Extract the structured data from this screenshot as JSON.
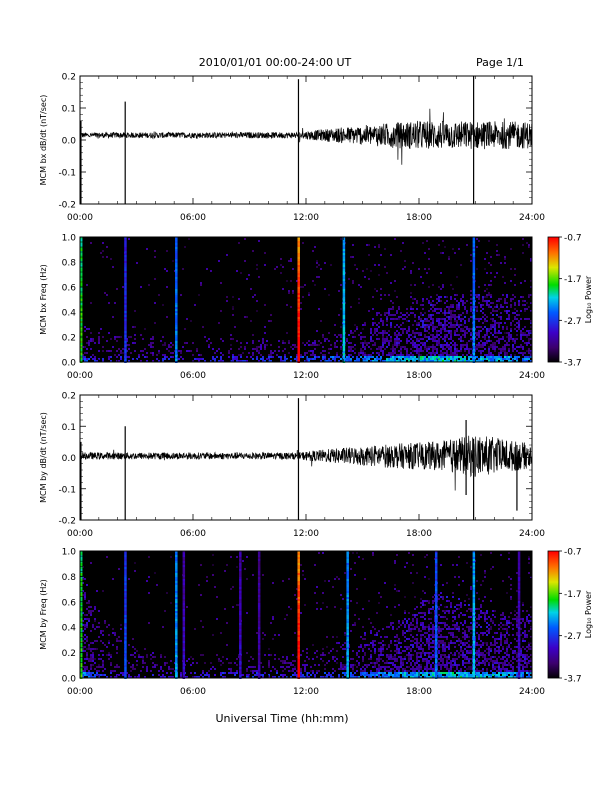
{
  "header": {
    "title": "2010/01/01   00:00-24:00 UT",
    "page": "Page 1/1"
  },
  "footer": {
    "xlabel": "Universal Time (hh:mm)"
  },
  "colors": {
    "line": "#000000",
    "spectrogram_bg": "#000000"
  },
  "chart_data": [
    {
      "type": "line",
      "ylabel": "MCM bx dB/dt (nT/sec)",
      "xlim": [
        0,
        24
      ],
      "ylim": [
        -0.2,
        0.2
      ],
      "xticks": [
        "00:00",
        "06:00",
        "12:00",
        "18:00",
        "24:00"
      ],
      "yticks": [
        "-0.2",
        "-0.1",
        "0.0",
        "0.1",
        "0.2"
      ],
      "baseline": 0.015,
      "noise": [
        [
          0,
          0.006
        ],
        [
          11.5,
          0.007
        ],
        [
          14,
          0.018
        ],
        [
          16.5,
          0.028
        ],
        [
          18,
          0.033
        ],
        [
          24,
          0.03
        ]
      ],
      "spikes": [
        [
          0.05,
          0.06,
          -0.2
        ],
        [
          2.4,
          0.12,
          -0.2
        ],
        [
          11.6,
          0.19,
          -0.2
        ],
        [
          20.9,
          0.2,
          -0.2
        ]
      ]
    },
    {
      "type": "heatmap",
      "ylabel": "MCM bx Freq (Hz)",
      "colorbar_label": "Log₁₀ Power",
      "xlim": [
        0,
        24
      ],
      "ylim": [
        0,
        1.0
      ],
      "xticks": [
        "00:00",
        "06:00",
        "12:00",
        "18:00",
        "24:00"
      ],
      "yticks": [
        "0.0",
        "0.2",
        "0.4",
        "0.6",
        "0.8",
        "1.0"
      ],
      "clim": [
        -3.7,
        -0.7
      ],
      "cticks": [
        "-0.7",
        "-1.7",
        "-2.7",
        "-3.7"
      ],
      "activity": [
        [
          0,
          0.5,
          0.3
        ],
        [
          1,
          0.3,
          0.25
        ],
        [
          6,
          0.3,
          0.2
        ],
        [
          11.8,
          0.45,
          0.18
        ],
        [
          14,
          0.55,
          0.25
        ],
        [
          16.5,
          0.75,
          0.45
        ],
        [
          19,
          0.9,
          0.55
        ],
        [
          21.5,
          0.75,
          0.55
        ],
        [
          24,
          0.65,
          0.55
        ]
      ],
      "stripes": [
        [
          0.05,
          -1.8
        ],
        [
          2.4,
          -2.7
        ],
        [
          5.1,
          -2.4
        ],
        [
          11.6,
          -1.0
        ],
        [
          14.0,
          -2.2
        ],
        [
          20.9,
          -2.4
        ]
      ]
    },
    {
      "type": "line",
      "ylabel": "MCM by dB/dt (nT/sec)",
      "xlim": [
        0,
        24
      ],
      "ylim": [
        -0.2,
        0.2
      ],
      "xticks": [
        "00:00",
        "06:00",
        "12:00",
        "18:00",
        "24:00"
      ],
      "yticks": [
        "-0.2",
        "-0.1",
        "0.0",
        "0.1",
        "0.2"
      ],
      "baseline": 0.005,
      "noise": [
        [
          0,
          0.008
        ],
        [
          11.5,
          0.008
        ],
        [
          13,
          0.015
        ],
        [
          16.5,
          0.028
        ],
        [
          19,
          0.033
        ],
        [
          21,
          0.05
        ],
        [
          24,
          0.028
        ]
      ],
      "spikes": [
        [
          0.05,
          0.05,
          -0.2
        ],
        [
          2.4,
          0.1,
          -0.2
        ],
        [
          11.6,
          0.19,
          -0.2
        ],
        [
          20.5,
          0.12,
          -0.12
        ],
        [
          20.9,
          0.06,
          -0.2
        ],
        [
          23.2,
          0.04,
          -0.17
        ]
      ]
    },
    {
      "type": "heatmap",
      "ylabel": "MCM by Freq (Hz)",
      "colorbar_label": "Log₁₀ Power",
      "xlim": [
        0,
        24
      ],
      "ylim": [
        0,
        1.0
      ],
      "xticks": [
        "00:00",
        "06:00",
        "12:00",
        "18:00",
        "24:00"
      ],
      "yticks": [
        "0.0",
        "0.2",
        "0.4",
        "0.6",
        "0.8",
        "1.0"
      ],
      "clim": [
        -3.7,
        -0.7
      ],
      "cticks": [
        "-0.7",
        "-1.7",
        "-2.7",
        "-3.7"
      ],
      "activity": [
        [
          0,
          0.7,
          0.9
        ],
        [
          1,
          0.4,
          0.5
        ],
        [
          3,
          0.3,
          0.25
        ],
        [
          6,
          0.3,
          0.2
        ],
        [
          11.8,
          0.4,
          0.2
        ],
        [
          14,
          0.5,
          0.3
        ],
        [
          16.5,
          0.7,
          0.45
        ],
        [
          19,
          0.85,
          0.7
        ],
        [
          21.5,
          0.8,
          0.55
        ],
        [
          24,
          0.65,
          0.5
        ]
      ],
      "stripes": [
        [
          0.05,
          -1.8
        ],
        [
          2.4,
          -2.6
        ],
        [
          5.1,
          -2.3
        ],
        [
          5.5,
          -3.0
        ],
        [
          8.5,
          -3.0
        ],
        [
          9.5,
          -3.1
        ],
        [
          11.6,
          -1.0
        ],
        [
          14.2,
          -2.3
        ],
        [
          18.9,
          -2.5
        ],
        [
          20.9,
          -2.2
        ],
        [
          23.3,
          -3.0
        ]
      ]
    }
  ]
}
